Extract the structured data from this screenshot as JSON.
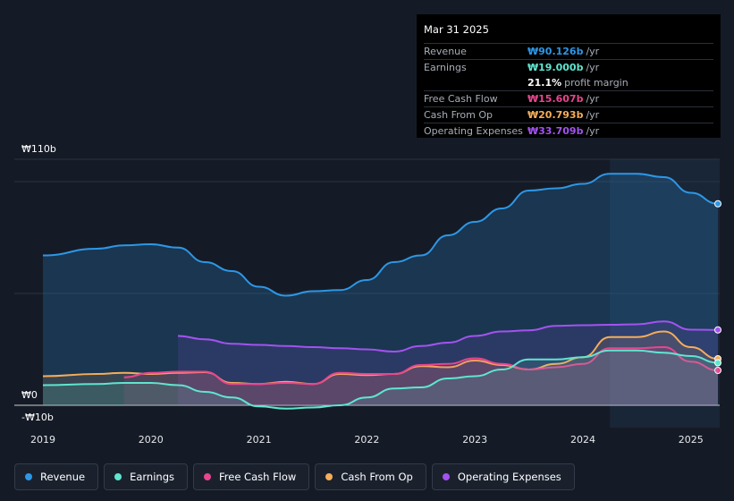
{
  "tooltip": {
    "date": "Mar 31 2025",
    "rows": [
      {
        "label": "Revenue",
        "value": "₩90.126b",
        "unit": "/yr",
        "color": "#2d97e6"
      },
      {
        "label": "Earnings",
        "value": "₩19.000b",
        "unit": "/yr",
        "color": "#5fe5d0"
      },
      {
        "label": "",
        "value": "21.1%",
        "unit": "profit margin",
        "color": "#ffffff"
      },
      {
        "label": "Free Cash Flow",
        "value": "₩15.607b",
        "unit": "/yr",
        "color": "#e8458f"
      },
      {
        "label": "Cash From Op",
        "value": "₩20.793b",
        "unit": "/yr",
        "color": "#f4ad5a"
      },
      {
        "label": "Operating Expenses",
        "value": "₩33.709b",
        "unit": "/yr",
        "color": "#a352f0"
      }
    ]
  },
  "legend": [
    {
      "label": "Revenue",
      "color": "#2d97e6"
    },
    {
      "label": "Earnings",
      "color": "#5fe5d0"
    },
    {
      "label": "Free Cash Flow",
      "color": "#e8458f"
    },
    {
      "label": "Cash From Op",
      "color": "#f4ad5a"
    },
    {
      "label": "Operating Expenses",
      "color": "#a352f0"
    }
  ],
  "chart_data": {
    "type": "area",
    "y_unit": "₩b",
    "ylim": [
      -10,
      110
    ],
    "y_tick_labels": [
      "₩110b",
      "₩0",
      "-₩10b"
    ],
    "x_tick_labels": [
      "2019",
      "2020",
      "2021",
      "2022",
      "2023",
      "2024",
      "2025"
    ],
    "xlim": [
      2019.0,
      2025.25
    ],
    "highlight_from": 2024.25,
    "series": [
      {
        "name": "Revenue",
        "color": "#2d97e6",
        "x": [
          2019.0,
          2019.5,
          2019.75,
          2020.0,
          2020.25,
          2020.5,
          2020.75,
          2021.0,
          2021.25,
          2021.5,
          2021.75,
          2022.0,
          2022.25,
          2022.5,
          2022.75,
          2023.0,
          2023.25,
          2023.5,
          2023.75,
          2024.0,
          2024.25,
          2024.5,
          2024.75,
          2025.0,
          2025.25
        ],
        "values": [
          67,
          70,
          71.5,
          72,
          70.5,
          64,
          60,
          53,
          49,
          51,
          51.5,
          56,
          64,
          67,
          76,
          82,
          88,
          96,
          97,
          99,
          103.5,
          103.5,
          102,
          95,
          90.1
        ]
      },
      {
        "name": "Operating Expenses",
        "color": "#a352f0",
        "x": [
          2020.25,
          2020.5,
          2020.75,
          2021.0,
          2021.25,
          2021.5,
          2021.75,
          2022.0,
          2022.25,
          2022.5,
          2022.75,
          2023.0,
          2023.25,
          2023.5,
          2023.75,
          2024.0,
          2024.25,
          2024.5,
          2024.75,
          2025.0,
          2025.25
        ],
        "values": [
          31,
          29.5,
          27.5,
          27,
          26.5,
          26,
          25.5,
          25,
          24,
          26.5,
          28,
          31,
          33,
          33.5,
          35.5,
          35.8,
          36,
          36.2,
          37.5,
          33.8,
          33.7
        ]
      },
      {
        "name": "Cash From Op",
        "color": "#f4ad5a",
        "x": [
          2019.0,
          2019.5,
          2019.75,
          2020.0,
          2020.25,
          2020.5,
          2020.75,
          2021.0,
          2021.25,
          2021.5,
          2021.75,
          2022.0,
          2022.25,
          2022.5,
          2022.75,
          2023.0,
          2023.25,
          2023.5,
          2023.75,
          2024.0,
          2024.25,
          2024.5,
          2024.75,
          2025.0,
          2025.25
        ],
        "values": [
          13,
          14,
          14.5,
          14,
          14.5,
          14.8,
          10,
          9.5,
          10.5,
          9.5,
          14,
          13.5,
          14,
          17.5,
          17,
          20,
          18,
          16,
          18.5,
          21.5,
          30.5,
          30.5,
          33,
          26,
          20.8
        ]
      },
      {
        "name": "Free Cash Flow",
        "color": "#e8458f",
        "x": [
          2019.75,
          2020.0,
          2020.25,
          2020.5,
          2020.75,
          2021.0,
          2021.25,
          2021.5,
          2021.75,
          2022.0,
          2022.25,
          2022.5,
          2022.75,
          2023.0,
          2023.25,
          2023.5,
          2023.75,
          2024.0,
          2024.25,
          2024.5,
          2024.75,
          2025.0,
          2025.25
        ],
        "values": [
          12.5,
          14.5,
          15,
          15,
          9.5,
          9.5,
          10,
          9.5,
          14.5,
          14,
          14,
          18,
          18.5,
          21,
          18.5,
          16,
          17,
          18.5,
          25.5,
          25.5,
          26,
          19.5,
          15.6
        ]
      },
      {
        "name": "Earnings",
        "color": "#5fe5d0",
        "x": [
          2019.0,
          2019.5,
          2019.75,
          2020.0,
          2020.25,
          2020.5,
          2020.75,
          2021.0,
          2021.25,
          2021.5,
          2021.75,
          2022.0,
          2022.25,
          2022.5,
          2022.75,
          2023.0,
          2023.25,
          2023.5,
          2023.75,
          2024.0,
          2024.25,
          2024.5,
          2024.75,
          2025.0,
          2025.25
        ],
        "values": [
          9,
          9.5,
          10,
          10,
          9,
          6,
          3.5,
          -0.5,
          -1.5,
          -1,
          0,
          3.5,
          7.5,
          8,
          12,
          13,
          16,
          20.5,
          20.5,
          21.5,
          24.5,
          24.5,
          23.5,
          22,
          19
        ]
      }
    ]
  }
}
